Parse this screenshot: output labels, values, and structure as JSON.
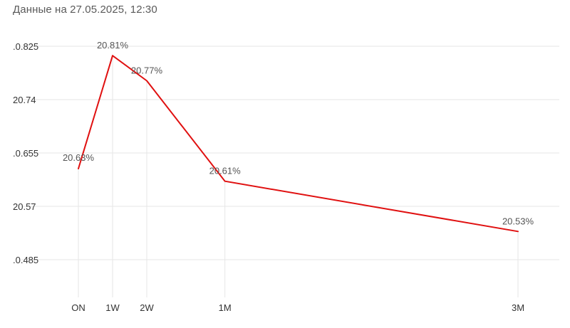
{
  "header": {
    "text": "Данные на 27.05.2025, 12:30"
  },
  "chart_data": {
    "type": "line",
    "categories": [
      "ON",
      "1W",
      "2W",
      "1M",
      "3M"
    ],
    "x_positions_days": [
      0,
      7,
      14,
      30,
      90
    ],
    "series": [
      {
        "values": [
          20.63,
          20.81,
          20.77,
          20.61,
          20.53
        ],
        "data_labels": [
          "20.63%",
          "20.81%",
          "20.77%",
          "20.61%",
          "20.53%"
        ],
        "color": "#e01010"
      }
    ],
    "yticks": [
      20.825,
      20.74,
      20.655,
      20.57,
      20.485
    ],
    "ytick_labels": [
      ".0.825",
      "20.74",
      ".0.655",
      "20.57",
      ".0.485"
    ],
    "ylim": [
      20.45,
      20.86
    ],
    "grid": true,
    "title": "",
    "xlabel": "",
    "ylabel": ""
  }
}
